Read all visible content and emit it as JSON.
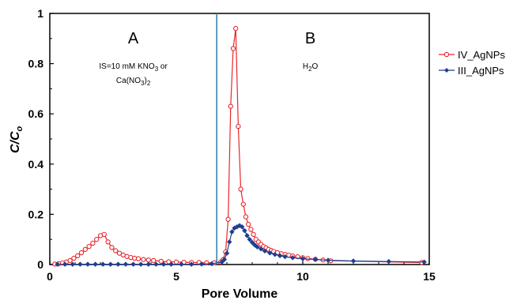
{
  "chart_data": {
    "type": "line",
    "xlabel": "Pore Volume",
    "ylabel": "C/C",
    "ylabel_sub": "o",
    "xlim": [
      0,
      15
    ],
    "ylim": [
      0,
      1
    ],
    "xticks": [
      0,
      5,
      10,
      15
    ],
    "yticks": [
      0,
      0.2,
      0.4,
      0.6,
      0.8,
      1
    ],
    "ytick_labels": [
      "0",
      "0.2",
      "0.4",
      "0.6",
      "0.8",
      "1"
    ],
    "grid": false,
    "legend_position": "right",
    "divider_x": 6.6,
    "regions": [
      {
        "letter": "A",
        "x": 3.3,
        "y": 0.88,
        "line1_main": "IS=10 mM KNO",
        "line1_sub": "3",
        "line1_tail": " or",
        "line2_main": "Ca(NO",
        "line2_sub": "3",
        "line2_close": ")",
        "line2_sub2": "2"
      },
      {
        "letter": "B",
        "x": 10.3,
        "y": 0.88,
        "line1_main": "H",
        "line1_sub": "2",
        "line1_tail": "O"
      }
    ],
    "series": [
      {
        "name": "IV_AgNPs",
        "color": "#e8262a",
        "marker": "circle-open",
        "x": [
          0.2,
          0.35,
          0.5,
          0.65,
          0.8,
          0.95,
          1.1,
          1.25,
          1.4,
          1.55,
          1.7,
          1.85,
          2.0,
          2.15,
          2.3,
          2.45,
          2.6,
          2.75,
          2.9,
          3.05,
          3.2,
          3.35,
          3.5,
          3.7,
          3.9,
          4.1,
          4.4,
          4.7,
          5.0,
          5.3,
          5.6,
          5.9,
          6.2,
          6.5,
          6.75,
          6.85,
          6.95,
          7.05,
          7.15,
          7.25,
          7.35,
          7.45,
          7.55,
          7.65,
          7.75,
          7.85,
          7.95,
          8.05,
          8.15,
          8.25,
          8.35,
          8.45,
          8.55,
          8.65,
          8.75,
          8.85,
          9.0,
          9.15,
          9.3,
          9.45,
          9.6,
          9.8,
          10.0,
          10.2,
          10.5,
          10.8,
          11.1,
          14.7
        ],
        "y": [
          0.002,
          0.003,
          0.006,
          0.01,
          0.016,
          0.025,
          0.035,
          0.047,
          0.06,
          0.072,
          0.085,
          0.1,
          0.115,
          0.12,
          0.09,
          0.068,
          0.055,
          0.045,
          0.038,
          0.032,
          0.028,
          0.025,
          0.023,
          0.02,
          0.018,
          0.016,
          0.013,
          0.011,
          0.01,
          0.009,
          0.008,
          0.008,
          0.007,
          0.007,
          0.01,
          0.02,
          0.05,
          0.18,
          0.63,
          0.86,
          0.94,
          0.55,
          0.3,
          0.24,
          0.19,
          0.16,
          0.14,
          0.12,
          0.1,
          0.09,
          0.08,
          0.072,
          0.066,
          0.06,
          0.056,
          0.052,
          0.047,
          0.043,
          0.04,
          0.037,
          0.034,
          0.031,
          0.027,
          0.024,
          0.021,
          0.018,
          0.015,
          0.008
        ]
      },
      {
        "name": "III_AgNPs",
        "color": "#1f3f8f",
        "marker": "diamond-filled",
        "x": [
          0.3,
          0.6,
          0.9,
          1.2,
          1.5,
          1.8,
          2.1,
          2.4,
          2.7,
          3.0,
          3.3,
          3.6,
          3.9,
          4.2,
          4.5,
          4.8,
          5.2,
          5.6,
          6.0,
          6.4,
          6.8,
          6.9,
          7.0,
          7.1,
          7.2,
          7.3,
          7.4,
          7.5,
          7.6,
          7.7,
          7.8,
          7.9,
          8.0,
          8.1,
          8.2,
          8.35,
          8.5,
          8.7,
          8.9,
          9.1,
          9.3,
          9.6,
          10.0,
          10.5,
          11.0,
          12.0,
          13.4,
          14.8
        ],
        "y": [
          0.001,
          0.001,
          0.001,
          0.001,
          0.001,
          0.001,
          0.001,
          0.001,
          0.001,
          0.001,
          0.001,
          0.001,
          0.001,
          0.001,
          0.001,
          0.001,
          0.001,
          0.001,
          0.002,
          0.003,
          0.01,
          0.02,
          0.045,
          0.09,
          0.13,
          0.145,
          0.15,
          0.155,
          0.15,
          0.135,
          0.115,
          0.1,
          0.088,
          0.078,
          0.07,
          0.062,
          0.054,
          0.046,
          0.04,
          0.035,
          0.031,
          0.027,
          0.023,
          0.02,
          0.017,
          0.014,
          0.012,
          0.01
        ]
      }
    ]
  }
}
